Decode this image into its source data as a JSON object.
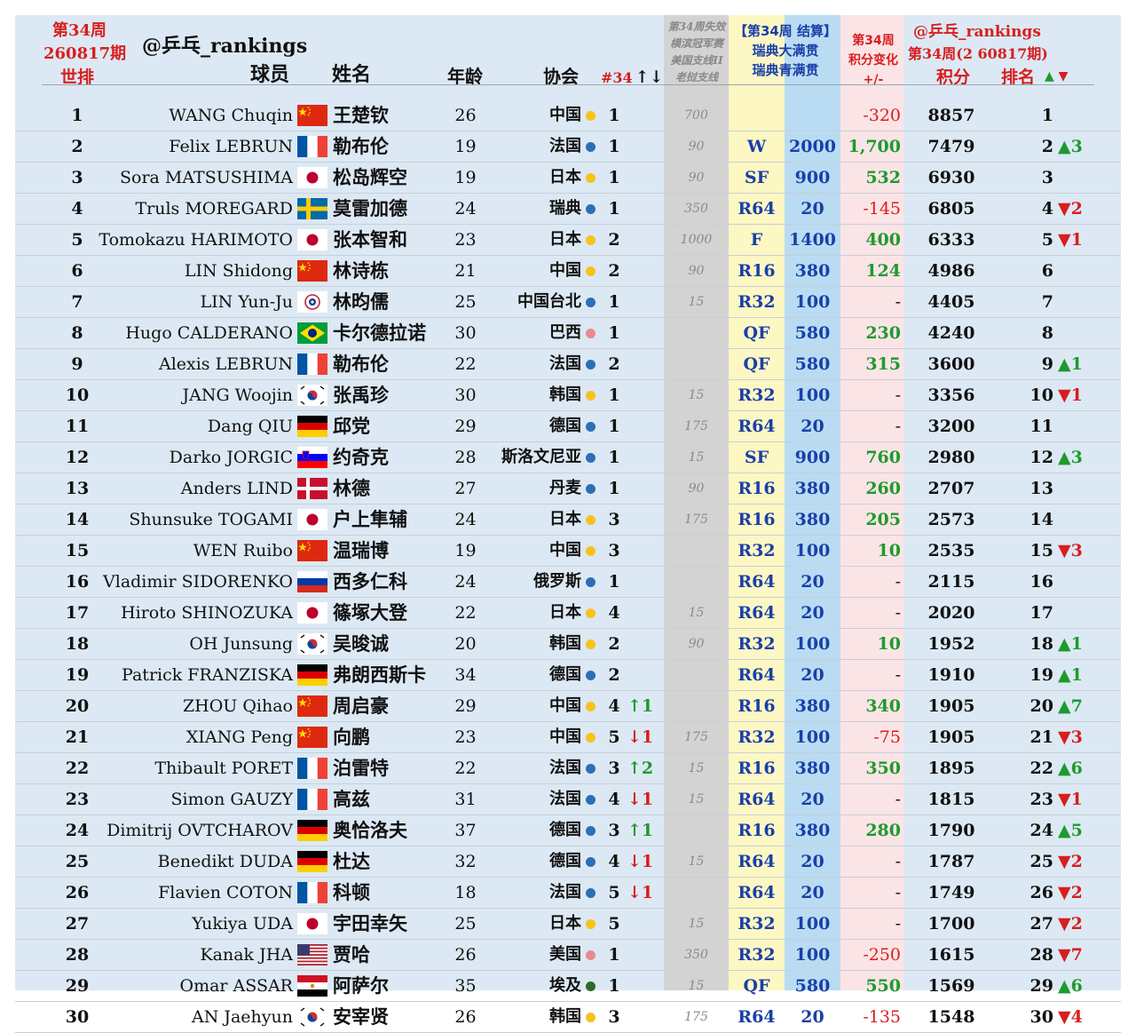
{
  "header": {
    "week_label": "第34周",
    "edition": "260817期",
    "world_rank": "世排",
    "handle": "@乒乓_rankings",
    "player": "球员",
    "name": "姓名",
    "age": "年龄",
    "assoc": "协会",
    "count_label": "#34",
    "count_arrows": "↑↓",
    "lost_line1": "第34周失效",
    "lost_line2": "横滨冠军赛",
    "lost_line3": "美国支线II",
    "lost_line4": "老挝支线",
    "settle_line1": "【第34周 结算】",
    "settle_line2": "瑞典大满贯",
    "settle_line3": "瑞典青满贯",
    "change_line1": "第34周",
    "change_line2": "积分变化",
    "change_line3": "+/-",
    "right_handle": "@乒乓_rankings",
    "right_edition": "第34周(2 60817期)",
    "points": "积分",
    "ranking": "排名",
    "up_down": "▲ ▼"
  },
  "colors": {
    "yellow_dot": "#f7c21b",
    "blue_dot": "#2d6fb5",
    "pink_dot": "#e88a8f",
    "green_dot": "#2e6b2a"
  },
  "rows": [
    {
      "rank": "1",
      "en": "WANG Chuqin",
      "flag": "china",
      "cn": "王楚钦",
      "age": "26",
      "assoc": "中国",
      "dot": "yellow",
      "cnt": "1",
      "arr": "",
      "lost": "700",
      "round": "",
      "pts": "",
      "chg": "-320",
      "total": "8857",
      "newrank": "1",
      "move": ""
    },
    {
      "rank": "2",
      "en": "Felix LEBRUN",
      "flag": "france",
      "cn": "勒布伦",
      "age": "19",
      "assoc": "法国",
      "dot": "blue",
      "cnt": "1",
      "arr": "",
      "lost": "90",
      "round": "W",
      "pts": "2000",
      "chg": "1,700",
      "total": "7479",
      "newrank": "2",
      "move": "▲3"
    },
    {
      "rank": "3",
      "en": "Sora MATSUSHIMA",
      "flag": "japan",
      "cn": "松岛辉空",
      "age": "19",
      "assoc": "日本",
      "dot": "yellow",
      "cnt": "1",
      "arr": "",
      "lost": "90",
      "round": "SF",
      "pts": "900",
      "chg": "532",
      "total": "6930",
      "newrank": "3",
      "move": ""
    },
    {
      "rank": "4",
      "en": "Truls MOREGARD",
      "flag": "sweden",
      "cn": "莫雷加德",
      "age": "24",
      "assoc": "瑞典",
      "dot": "blue",
      "cnt": "1",
      "arr": "",
      "lost": "350",
      "round": "R64",
      "pts": "20",
      "chg": "-145",
      "total": "6805",
      "newrank": "4",
      "move": "▼2"
    },
    {
      "rank": "5",
      "en": "Tomokazu HARIMOTO",
      "flag": "japan",
      "cn": "张本智和",
      "age": "23",
      "assoc": "日本",
      "dot": "yellow",
      "cnt": "2",
      "arr": "",
      "lost": "1000",
      "round": "F",
      "pts": "1400",
      "chg": "400",
      "total": "6333",
      "newrank": "5",
      "move": "▼1"
    },
    {
      "rank": "6",
      "en": "LIN Shidong",
      "flag": "china",
      "cn": "林诗栋",
      "age": "21",
      "assoc": "中国",
      "dot": "yellow",
      "cnt": "2",
      "arr": "",
      "lost": "90",
      "round": "R16",
      "pts": "380",
      "chg": "124",
      "total": "4986",
      "newrank": "6",
      "move": ""
    },
    {
      "rank": "7",
      "en": "LIN Yun-Ju",
      "flag": "tpe",
      "cn": "林昀儒",
      "age": "25",
      "assoc": "中国台北",
      "dot": "blue",
      "cnt": "1",
      "arr": "",
      "lost": "15",
      "round": "R32",
      "pts": "100",
      "chg": "-",
      "total": "4405",
      "newrank": "7",
      "move": ""
    },
    {
      "rank": "8",
      "en": "Hugo CALDERANO",
      "flag": "brazil",
      "cn": "卡尔德拉诺",
      "age": "30",
      "assoc": "巴西",
      "dot": "pink",
      "cnt": "1",
      "arr": "",
      "lost": "",
      "round": "QF",
      "pts": "580",
      "chg": "230",
      "total": "4240",
      "newrank": "8",
      "move": ""
    },
    {
      "rank": "9",
      "en": "Alexis LEBRUN",
      "flag": "france",
      "cn": "勒布伦",
      "age": "22",
      "assoc": "法国",
      "dot": "blue",
      "cnt": "2",
      "arr": "",
      "lost": "",
      "round": "QF",
      "pts": "580",
      "chg": "315",
      "total": "3600",
      "newrank": "9",
      "move": "▲1"
    },
    {
      "rank": "10",
      "en": "JANG Woojin",
      "flag": "korea",
      "cn": "张禹珍",
      "age": "30",
      "assoc": "韩国",
      "dot": "yellow",
      "cnt": "1",
      "arr": "",
      "lost": "15",
      "round": "R32",
      "pts": "100",
      "chg": "-",
      "total": "3356",
      "newrank": "10",
      "move": "▼1"
    },
    {
      "rank": "11",
      "en": "Dang QIU",
      "flag": "germany",
      "cn": "邱党",
      "age": "29",
      "assoc": "德国",
      "dot": "blue",
      "cnt": "1",
      "arr": "",
      "lost": "175",
      "round": "R64",
      "pts": "20",
      "chg": "-",
      "total": "3200",
      "newrank": "11",
      "move": ""
    },
    {
      "rank": "12",
      "en": "Darko JORGIC",
      "flag": "slovenia",
      "cn": "约奇克",
      "age": "28",
      "assoc": "斯洛文尼亚",
      "dot": "blue",
      "cnt": "1",
      "arr": "",
      "lost": "15",
      "round": "SF",
      "pts": "900",
      "chg": "760",
      "total": "2980",
      "newrank": "12",
      "move": "▲3"
    },
    {
      "rank": "13",
      "en": "Anders LIND",
      "flag": "denmark",
      "cn": "林德",
      "age": "27",
      "assoc": "丹麦",
      "dot": "blue",
      "cnt": "1",
      "arr": "",
      "lost": "90",
      "round": "R16",
      "pts": "380",
      "chg": "260",
      "total": "2707",
      "newrank": "13",
      "move": ""
    },
    {
      "rank": "14",
      "en": "Shunsuke TOGAMI",
      "flag": "japan",
      "cn": "户上隼辅",
      "age": "24",
      "assoc": "日本",
      "dot": "yellow",
      "cnt": "3",
      "arr": "",
      "lost": "175",
      "round": "R16",
      "pts": "380",
      "chg": "205",
      "total": "2573",
      "newrank": "14",
      "move": ""
    },
    {
      "rank": "15",
      "en": "WEN Ruibo",
      "flag": "china",
      "cn": "温瑞博",
      "age": "19",
      "assoc": "中国",
      "dot": "yellow",
      "cnt": "3",
      "arr": "",
      "lost": "",
      "round": "R32",
      "pts": "100",
      "chg": "10",
      "total": "2535",
      "newrank": "15",
      "move": "▼3"
    },
    {
      "rank": "16",
      "en": "Vladimir SIDORENKO",
      "flag": "russia",
      "cn": "西多仁科",
      "age": "24",
      "assoc": "俄罗斯",
      "dot": "blue",
      "cnt": "1",
      "arr": "",
      "lost": "",
      "round": "R64",
      "pts": "20",
      "chg": "-",
      "total": "2115",
      "newrank": "16",
      "move": ""
    },
    {
      "rank": "17",
      "en": "Hiroto SHINOZUKA",
      "flag": "japan",
      "cn": "篠塚大登",
      "age": "22",
      "assoc": "日本",
      "dot": "yellow",
      "cnt": "4",
      "arr": "",
      "lost": "15",
      "round": "R64",
      "pts": "20",
      "chg": "-",
      "total": "2020",
      "newrank": "17",
      "move": ""
    },
    {
      "rank": "18",
      "en": "OH Junsung",
      "flag": "korea",
      "cn": "吴晙诚",
      "age": "20",
      "assoc": "韩国",
      "dot": "yellow",
      "cnt": "2",
      "arr": "",
      "lost": "90",
      "round": "R32",
      "pts": "100",
      "chg": "10",
      "total": "1952",
      "newrank": "18",
      "move": "▲1"
    },
    {
      "rank": "19",
      "en": "Patrick FRANZISKA",
      "flag": "germany",
      "cn": "弗朗西斯卡",
      "age": "34",
      "assoc": "德国",
      "dot": "blue",
      "cnt": "2",
      "arr": "",
      "lost": "",
      "round": "R64",
      "pts": "20",
      "chg": "-",
      "total": "1910",
      "newrank": "19",
      "move": "▲1"
    },
    {
      "rank": "20",
      "en": "ZHOU Qihao",
      "flag": "china",
      "cn": "周启豪",
      "age": "29",
      "assoc": "中国",
      "dot": "yellow",
      "cnt": "4",
      "arr": "↑1",
      "lost": "",
      "round": "R16",
      "pts": "380",
      "chg": "340",
      "total": "1905",
      "newrank": "20",
      "move": "▲7"
    },
    {
      "rank": "21",
      "en": "XIANG Peng",
      "flag": "china",
      "cn": "向鹏",
      "age": "23",
      "assoc": "中国",
      "dot": "yellow",
      "cnt": "5",
      "arr": "↓1",
      "lost": "175",
      "round": "R32",
      "pts": "100",
      "chg": "-75",
      "total": "1905",
      "newrank": "21",
      "move": "▼3"
    },
    {
      "rank": "22",
      "en": "Thibault PORET",
      "flag": "france",
      "cn": "泊雷特",
      "age": "22",
      "assoc": "法国",
      "dot": "blue",
      "cnt": "3",
      "arr": "↑2",
      "lost": "15",
      "round": "R16",
      "pts": "380",
      "chg": "350",
      "total": "1895",
      "newrank": "22",
      "move": "▲6"
    },
    {
      "rank": "23",
      "en": "Simon GAUZY",
      "flag": "france",
      "cn": "高兹",
      "age": "31",
      "assoc": "法国",
      "dot": "blue",
      "cnt": "4",
      "arr": "↓1",
      "lost": "15",
      "round": "R64",
      "pts": "20",
      "chg": "-",
      "total": "1815",
      "newrank": "23",
      "move": "▼1"
    },
    {
      "rank": "24",
      "en": "Dimitrij OVTCHAROV",
      "flag": "germany",
      "cn": "奥恰洛夫",
      "age": "37",
      "assoc": "德国",
      "dot": "blue",
      "cnt": "3",
      "arr": "↑1",
      "lost": "",
      "round": "R16",
      "pts": "380",
      "chg": "280",
      "total": "1790",
      "newrank": "24",
      "move": "▲5"
    },
    {
      "rank": "25",
      "en": "Benedikt DUDA",
      "flag": "germany",
      "cn": "杜达",
      "age": "32",
      "assoc": "德国",
      "dot": "blue",
      "cnt": "4",
      "arr": "↓1",
      "lost": "15",
      "round": "R64",
      "pts": "20",
      "chg": "-",
      "total": "1787",
      "newrank": "25",
      "move": "▼2"
    },
    {
      "rank": "26",
      "en": "Flavien COTON",
      "flag": "france",
      "cn": "科顿",
      "age": "18",
      "assoc": "法国",
      "dot": "blue",
      "cnt": "5",
      "arr": "↓1",
      "lost": "",
      "round": "R64",
      "pts": "20",
      "chg": "-",
      "total": "1749",
      "newrank": "26",
      "move": "▼2"
    },
    {
      "rank": "27",
      "en": "Yukiya UDA",
      "flag": "japan",
      "cn": "宇田幸矢",
      "age": "25",
      "assoc": "日本",
      "dot": "yellow",
      "cnt": "5",
      "arr": "",
      "lost": "15",
      "round": "R32",
      "pts": "100",
      "chg": "-",
      "total": "1700",
      "newrank": "27",
      "move": "▼2"
    },
    {
      "rank": "28",
      "en": "Kanak JHA",
      "flag": "usa",
      "cn": "贾哈",
      "age": "26",
      "assoc": "美国",
      "dot": "pink",
      "cnt": "1",
      "arr": "",
      "lost": "350",
      "round": "R32",
      "pts": "100",
      "chg": "-250",
      "total": "1615",
      "newrank": "28",
      "move": "▼7"
    },
    {
      "rank": "29",
      "en": "Omar ASSAR",
      "flag": "egypt",
      "cn": "阿萨尔",
      "age": "35",
      "assoc": "埃及",
      "dot": "green",
      "cnt": "1",
      "arr": "",
      "lost": "15",
      "round": "QF",
      "pts": "580",
      "chg": "550",
      "total": "1569",
      "newrank": "29",
      "move": "▲6"
    },
    {
      "rank": "30",
      "en": "AN Jaehyun",
      "flag": "korea",
      "cn": "安宰贤",
      "age": "26",
      "assoc": "韩国",
      "dot": "yellow",
      "cnt": "3",
      "arr": "",
      "lost": "175",
      "round": "R64",
      "pts": "20",
      "chg": "-135",
      "total": "1548",
      "newrank": "30",
      "move": "▼4"
    }
  ]
}
